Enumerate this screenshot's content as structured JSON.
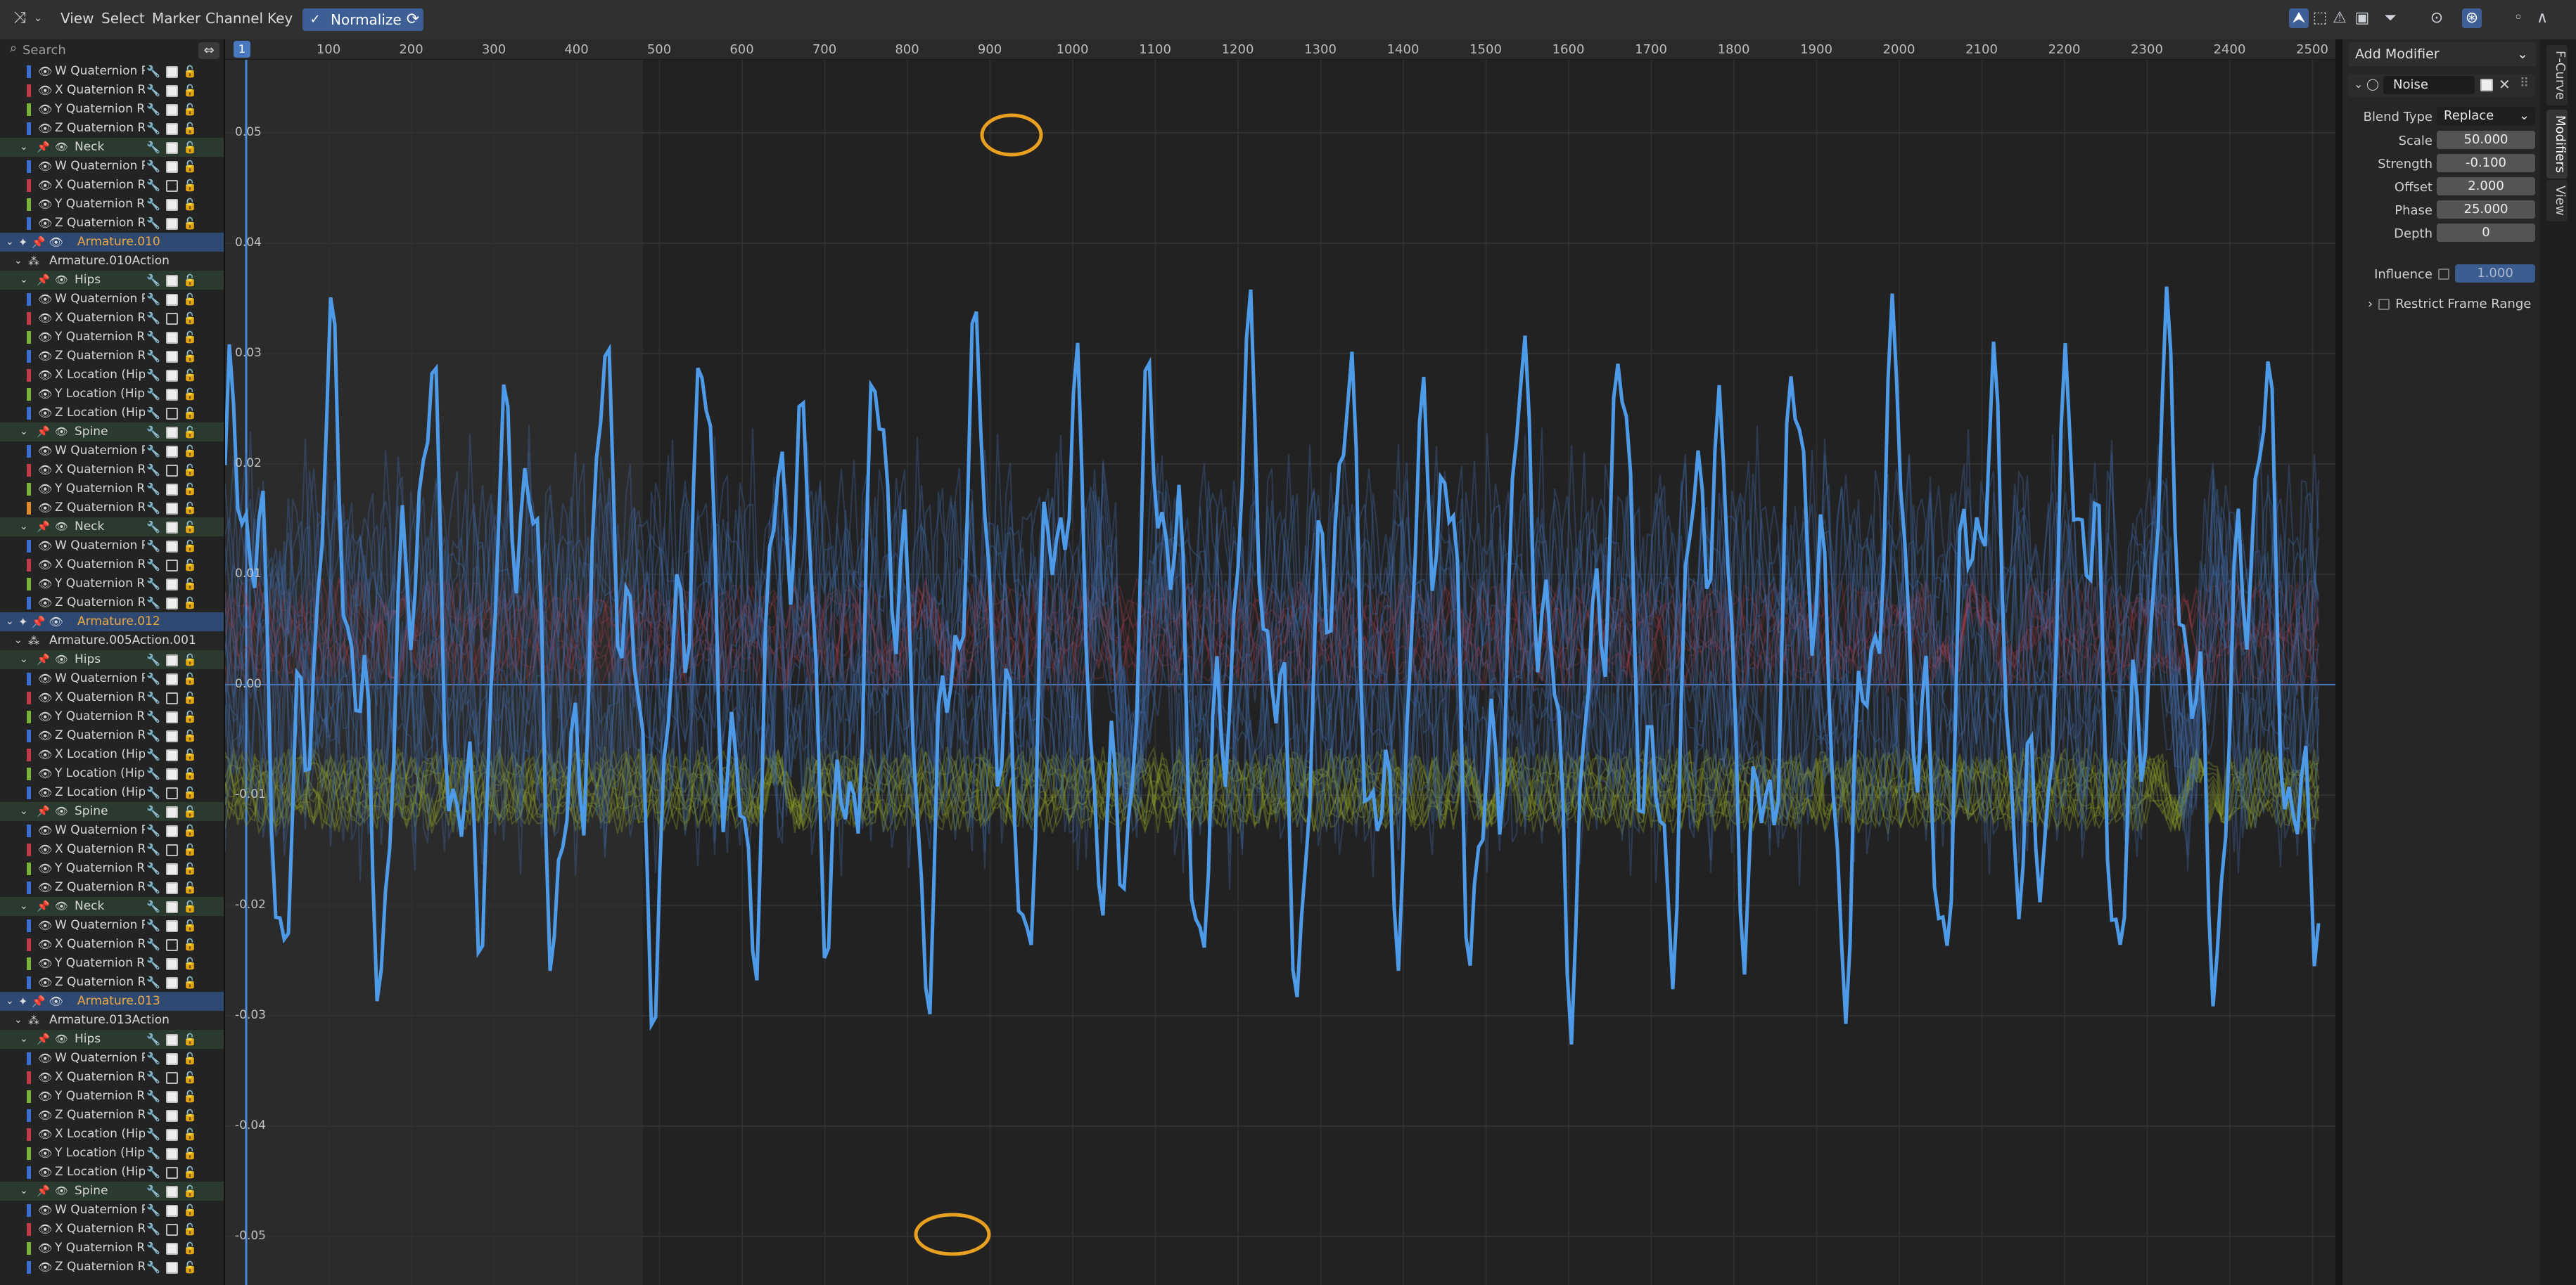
{
  "menu": {
    "view": "View",
    "select": "Select",
    "marker": "Marker",
    "channel": "Channel",
    "key": "Key",
    "normalize": "Normalize"
  },
  "search": {
    "placeholder": "Search"
  },
  "channels": [
    {
      "kind": "channel",
      "label": "W Quaternion Rc",
      "color": "#3b6fd6",
      "on": true
    },
    {
      "kind": "channel",
      "label": "X Quaternion Ro",
      "color": "#c03a4a",
      "on": true
    },
    {
      "kind": "channel",
      "label": "Y Quaternion Ro",
      "color": "#7bb33a",
      "on": true
    },
    {
      "kind": "channel",
      "label": "Z Quaternion Ro",
      "color": "#3b6fd6",
      "on": true
    },
    {
      "kind": "group",
      "label": "Neck"
    },
    {
      "kind": "channel",
      "label": "W Quaternion Rc",
      "color": "#3b6fd6",
      "on": true
    },
    {
      "kind": "channel",
      "label": "X Quaternion Ro",
      "color": "#c03a4a",
      "on": false
    },
    {
      "kind": "channel",
      "label": "Y Quaternion Ro",
      "color": "#7bb33a",
      "on": true
    },
    {
      "kind": "channel",
      "label": "Z Quaternion Ro",
      "color": "#3b6fd6",
      "on": true
    },
    {
      "kind": "object",
      "label": "Armature.010"
    },
    {
      "kind": "action",
      "label": "Armature.010Action"
    },
    {
      "kind": "group",
      "label": "Hips"
    },
    {
      "kind": "channel",
      "label": "W Quaternion Rc",
      "color": "#3b6fd6",
      "on": true
    },
    {
      "kind": "channel",
      "label": "X Quaternion Ro",
      "color": "#c03a4a",
      "on": false
    },
    {
      "kind": "channel",
      "label": "Y Quaternion Ro",
      "color": "#7bb33a",
      "on": true
    },
    {
      "kind": "channel",
      "label": "Z Quaternion Ro",
      "color": "#3b6fd6",
      "on": true
    },
    {
      "kind": "channel",
      "label": "X Location (Hips",
      "color": "#c03a4a",
      "on": true
    },
    {
      "kind": "channel",
      "label": "Y Location (Hips",
      "color": "#7bb33a",
      "on": true
    },
    {
      "kind": "channel",
      "label": "Z Location (Hips",
      "color": "#3b6fd6",
      "on": false
    },
    {
      "kind": "group",
      "label": "Spine"
    },
    {
      "kind": "channel",
      "label": "W Quaternion Rc",
      "color": "#3b6fd6",
      "on": true
    },
    {
      "kind": "channel",
      "label": "X Quaternion Ro",
      "color": "#c03a4a",
      "on": false
    },
    {
      "kind": "channel",
      "label": "Y Quaternion Ro",
      "color": "#7bb33a",
      "on": true
    },
    {
      "kind": "channel",
      "label": "Z Quaternion Ro",
      "color": "#e08a2a",
      "on": true
    },
    {
      "kind": "group",
      "label": "Neck"
    },
    {
      "kind": "channel",
      "label": "W Quaternion Rc",
      "color": "#3b6fd6",
      "on": true
    },
    {
      "kind": "channel",
      "label": "X Quaternion Ro",
      "color": "#c03a4a",
      "on": false
    },
    {
      "kind": "channel",
      "label": "Y Quaternion Ro",
      "color": "#7bb33a",
      "on": true
    },
    {
      "kind": "channel",
      "label": "Z Quaternion Ro",
      "color": "#3b6fd6",
      "on": true
    },
    {
      "kind": "object",
      "label": "Armature.012"
    },
    {
      "kind": "action",
      "label": "Armature.005Action.001"
    },
    {
      "kind": "group",
      "label": "Hips"
    },
    {
      "kind": "channel",
      "label": "W Quaternion Rc",
      "color": "#3b6fd6",
      "on": true
    },
    {
      "kind": "channel",
      "label": "X Quaternion Ro",
      "color": "#c03a4a",
      "on": false
    },
    {
      "kind": "channel",
      "label": "Y Quaternion Ro",
      "color": "#7bb33a",
      "on": true
    },
    {
      "kind": "channel",
      "label": "Z Quaternion Ro",
      "color": "#3b6fd6",
      "on": true
    },
    {
      "kind": "channel",
      "label": "X Location (Hips",
      "color": "#c03a4a",
      "on": true
    },
    {
      "kind": "channel",
      "label": "Y Location (Hips",
      "color": "#7bb33a",
      "on": true
    },
    {
      "kind": "channel",
      "label": "Z Location (Hips",
      "color": "#3b6fd6",
      "on": false
    },
    {
      "kind": "group",
      "label": "Spine"
    },
    {
      "kind": "channel",
      "label": "W Quaternion Rc",
      "color": "#3b6fd6",
      "on": true
    },
    {
      "kind": "channel",
      "label": "X Quaternion Ro",
      "color": "#c03a4a",
      "on": false
    },
    {
      "kind": "channel",
      "label": "Y Quaternion Ro",
      "color": "#7bb33a",
      "on": true
    },
    {
      "kind": "channel",
      "label": "Z Quaternion Ro",
      "color": "#3b6fd6",
      "on": true
    },
    {
      "kind": "group",
      "label": "Neck"
    },
    {
      "kind": "channel",
      "label": "W Quaternion Rc",
      "color": "#3b6fd6",
      "on": true
    },
    {
      "kind": "channel",
      "label": "X Quaternion Ro",
      "color": "#c03a4a",
      "on": false
    },
    {
      "kind": "channel",
      "label": "Y Quaternion Ro",
      "color": "#7bb33a",
      "on": true
    },
    {
      "kind": "channel",
      "label": "Z Quaternion Ro",
      "color": "#3b6fd6",
      "on": true
    },
    {
      "kind": "object",
      "label": "Armature.013"
    },
    {
      "kind": "action",
      "label": "Armature.013Action"
    },
    {
      "kind": "group",
      "label": "Hips"
    },
    {
      "kind": "channel",
      "label": "W Quaternion Rc",
      "color": "#3b6fd6",
      "on": true
    },
    {
      "kind": "channel",
      "label": "X Quaternion Ro",
      "color": "#c03a4a",
      "on": false
    },
    {
      "kind": "channel",
      "label": "Y Quaternion Ro",
      "color": "#7bb33a",
      "on": true
    },
    {
      "kind": "channel",
      "label": "Z Quaternion Ro",
      "color": "#3b6fd6",
      "on": true
    },
    {
      "kind": "channel",
      "label": "X Location (Hips",
      "color": "#c03a4a",
      "on": true
    },
    {
      "kind": "channel",
      "label": "Y Location (Hips",
      "color": "#7bb33a",
      "on": true
    },
    {
      "kind": "channel",
      "label": "Z Location (Hips",
      "color": "#3b6fd6",
      "on": false
    },
    {
      "kind": "group",
      "label": "Spine"
    },
    {
      "kind": "channel",
      "label": "W Quaternion Rc",
      "color": "#3b6fd6",
      "on": true
    },
    {
      "kind": "channel",
      "label": "X Quaternion Ro",
      "color": "#c03a4a",
      "on": false
    },
    {
      "kind": "channel",
      "label": "Y Quaternion Ro",
      "color": "#7bb33a",
      "on": true
    },
    {
      "kind": "channel",
      "label": "Z Quaternion Ro",
      "color": "#3b6fd6",
      "on": true
    }
  ],
  "timeline": {
    "current_frame": "1",
    "ticks": [
      "100",
      "200",
      "300",
      "400",
      "500",
      "600",
      "700",
      "800",
      "900",
      "1000",
      "1100",
      "1200",
      "1300",
      "1400",
      "1500",
      "1600",
      "1700",
      "1800",
      "1900",
      "2000",
      "2100",
      "2200",
      "2300",
      "2400",
      "2500"
    ],
    "y_ticks": [
      "0.05",
      "0.04",
      "0.03",
      "0.02",
      "0.01",
      "0.00",
      "-0.01",
      "-0.02",
      "-0.03",
      "-0.04",
      "-0.05"
    ]
  },
  "modifier_panel": {
    "add_modifier": "Add Modifier",
    "modifier_name": "Noise",
    "blend_type_label": "Blend Type",
    "blend_type_value": "Replace",
    "props": [
      {
        "label": "Scale",
        "value": "50.000"
      },
      {
        "label": "Strength",
        "value": "-0.100"
      },
      {
        "label": "Offset",
        "value": "2.000"
      },
      {
        "label": "Phase",
        "value": "25.000"
      },
      {
        "label": "Depth",
        "value": "0"
      }
    ],
    "influence_label": "Influence",
    "influence_value": "1.000",
    "restrict_label": "Restrict Frame Range"
  },
  "side_tabs": [
    "F-Curve",
    "Modifiers",
    "View"
  ],
  "colors": {
    "accent": "#4a8ad8",
    "object_row": "#2e4a73",
    "group_row": "#2a3a2f",
    "highlight": "#e8a020"
  }
}
